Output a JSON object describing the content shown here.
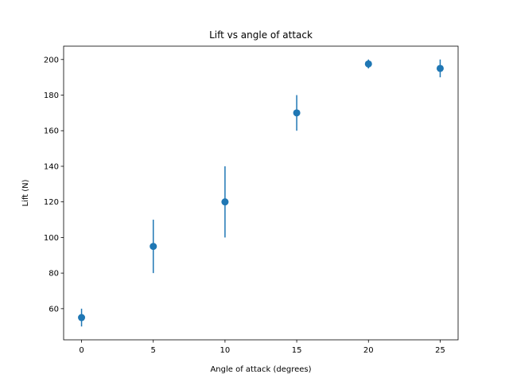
{
  "chart_data": {
    "type": "scatter",
    "title": "Lift vs angle of attack",
    "xlabel": "Angle of attack (degrees)",
    "ylabel": "Lift (N)",
    "xlim": [
      -1.25,
      26.25
    ],
    "ylim": [
      42.5,
      207.5
    ],
    "xticks": [
      0,
      5,
      10,
      15,
      20,
      25
    ],
    "yticks": [
      60,
      80,
      100,
      120,
      140,
      160,
      180,
      200
    ],
    "grid": false,
    "legend": "none",
    "color": "#1f77b4",
    "points": [
      {
        "x": 0,
        "y": 55,
        "err": 5
      },
      {
        "x": 5,
        "y": 95,
        "err": 15
      },
      {
        "x": 10,
        "y": 120,
        "err": 20
      },
      {
        "x": 15,
        "y": 170,
        "err": 10
      },
      {
        "x": 20,
        "y": 197.5,
        "err": 2.5
      },
      {
        "x": 25,
        "y": 195,
        "err": 5
      }
    ]
  }
}
